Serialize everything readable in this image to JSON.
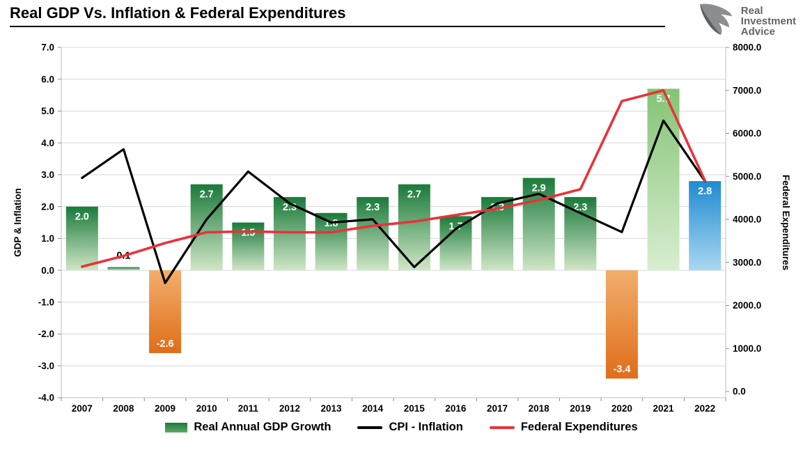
{
  "header": {
    "title": "Real GDP Vs. Inflation & Federal Expenditures",
    "logo": {
      "lines": [
        "Real",
        "Investment",
        "Advice"
      ]
    }
  },
  "palette": {
    "grid": "#d8d8d8",
    "axis": "#bfbfbf",
    "tick_mark": "#8c8c8c",
    "text": "#000000",
    "cpi_line": "#000000",
    "fed_line": "#e8333a",
    "logo_gray": "#8b8e91",
    "logo_gray_dark": "#5d6063",
    "logo_text": "#636569",
    "bar_gradients": {
      "green": {
        "top": "#1a7a3a",
        "bottom": "#cfe6c6"
      },
      "greenLight": {
        "top": "#83c474",
        "bottom": "#d9eed1"
      },
      "orange": {
        "top": "#f2ae6c",
        "bottom": "#e06d1a"
      },
      "blue": {
        "top": "#1f8bd0",
        "bottom": "#a9d7f1"
      }
    }
  },
  "chart_data": {
    "type": "combo",
    "title": "Real GDP Vs. Inflation & Federal Expenditures",
    "categories": [
      "2007",
      "2008",
      "2009",
      "2010",
      "2011",
      "2012",
      "2013",
      "2014",
      "2015",
      "2016",
      "2017",
      "2018",
      "2019",
      "2020",
      "2021",
      "2022"
    ],
    "series": [
      {
        "name": "Real Annual GDP Growth",
        "type": "bar",
        "axis": "left",
        "values": [
          2.0,
          0.1,
          -2.6,
          2.7,
          1.5,
          2.3,
          1.8,
          2.3,
          2.7,
          1.7,
          2.3,
          2.9,
          2.3,
          -3.4,
          5.7,
          2.8
        ],
        "labels": [
          "2.0",
          "0.1",
          "-2.6",
          "2.7",
          "1.5",
          "2.3",
          "1.8",
          "2.3",
          "2.7",
          "1.7",
          "2.3",
          "2.9",
          "2.3",
          "-3.4",
          "5.7",
          "2.8"
        ],
        "bar_styles": [
          "green",
          "green",
          "orange",
          "green",
          "green",
          "green",
          "green",
          "green",
          "green",
          "green",
          "green",
          "green",
          "green",
          "orange",
          "greenLight",
          "blue"
        ]
      },
      {
        "name": "CPI - Inflation",
        "type": "line",
        "axis": "left",
        "color_key": "cpi_line",
        "values": [
          2.9,
          3.8,
          -0.4,
          1.6,
          3.1,
          2.1,
          1.5,
          1.6,
          0.1,
          1.3,
          2.1,
          2.4,
          1.8,
          1.2,
          4.7,
          2.8
        ]
      },
      {
        "name": "Federal Expenditures",
        "type": "line",
        "axis": "right",
        "color_key": "fed_line",
        "values": [
          2900,
          3150,
          3450,
          3700,
          3720,
          3700,
          3700,
          3850,
          3950,
          4100,
          4250,
          4450,
          4700,
          6750,
          7000,
          4900
        ]
      }
    ],
    "left_axis": {
      "label": "GDP & Inflation",
      "min": -4,
      "max": 7,
      "step": 1,
      "ticks": [
        "7.0",
        "6.0",
        "5.0",
        "4.0",
        "3.0",
        "2.0",
        "1.0",
        "0.0",
        "-1.0",
        "-2.0",
        "-3.0",
        "-4.0"
      ]
    },
    "right_axis": {
      "label": "Federal Expenditures",
      "min": 0,
      "max": 8000,
      "step": 1000,
      "ticks": [
        "8000.0",
        "7000.0",
        "6000.0",
        "5000.0",
        "4000.0",
        "3000.0",
        "2000.0",
        "1000.0",
        "0.0"
      ]
    },
    "grid": true,
    "legend_position": "bottom"
  }
}
